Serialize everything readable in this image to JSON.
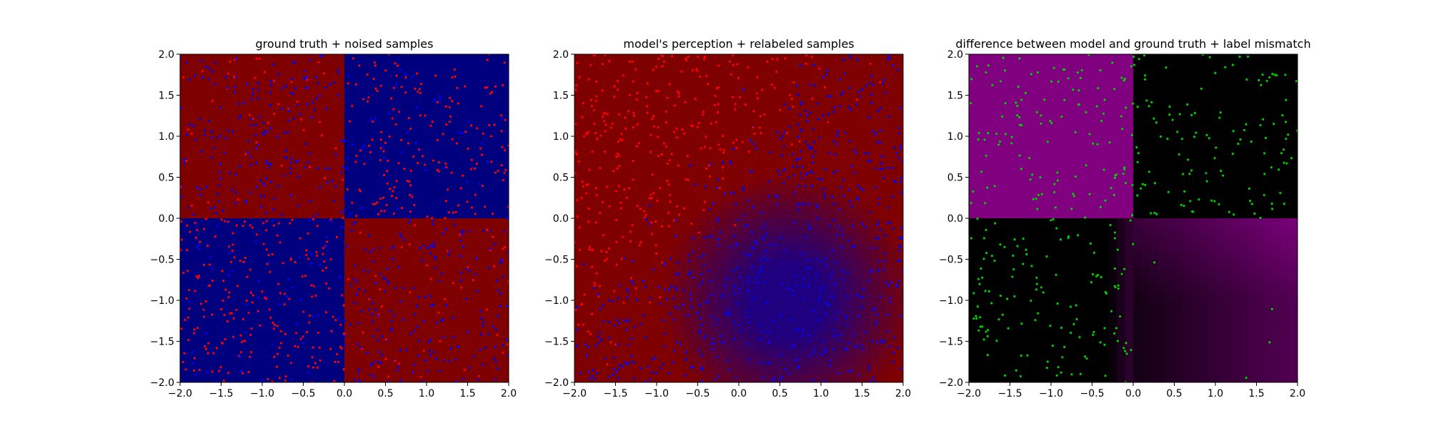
{
  "figure": {
    "background": "#ffffff"
  },
  "chart_data": [
    {
      "type": "heatmap",
      "title": "ground truth + noised samples",
      "xlim": [
        -2.0,
        2.0
      ],
      "ylim": [
        -2.0,
        2.0
      ],
      "xticks": [
        "−2.0",
        "−1.5",
        "−1.0",
        "−0.5",
        "0.0",
        "0.5",
        "1.0",
        "1.5",
        "2.0"
      ],
      "yticks": [
        "−2.0",
        "−1.5",
        "−1.0",
        "−0.5",
        "0.0",
        "0.5",
        "1.0",
        "1.5",
        "2.0"
      ],
      "grid": false,
      "background": "quadrants: x*y<0 dark red, x*y>0 dark blue (XOR ground truth)",
      "colors": {
        "positive_product": "#00007f",
        "negative_product": "#7f0000"
      },
      "scatter": {
        "description": "~1000 noisy samples uniformly spread over [-2,2]^2; red points where the label is 'red', blue points where 'blue'",
        "colors": [
          "#ff0000",
          "#0000ff"
        ],
        "count": 1000
      }
    },
    {
      "type": "heatmap",
      "title": "model's perception + relabeled samples",
      "xlim": [
        -2.0,
        2.0
      ],
      "ylim": [
        -2.0,
        2.0
      ],
      "xticks": [
        "−2.0",
        "−1.5",
        "−1.0",
        "−0.5",
        "0.0",
        "0.5",
        "1.0",
        "1.5",
        "2.0"
      ],
      "yticks": [
        "−2.0",
        "−1.5",
        "−1.0",
        "−0.5",
        "0.0",
        "0.5",
        "1.0",
        "1.5",
        "2.0"
      ],
      "grid": false,
      "background": "mostly dark red; blue region toward the lower-right",
      "colors": {
        "red": "#7f0000",
        "blue": "#1f007f"
      },
      "scatter": {
        "description": "relabeled samples: red cluster in the upper-left, blue cluster centered near (0.3,-0.3)",
        "colors": [
          "#ff0000",
          "#0000ff"
        ],
        "count": 1000
      }
    },
    {
      "type": "heatmap",
      "title": "difference between model and ground truth + label mismatch",
      "xlim": [
        -2.0,
        2.0
      ],
      "ylim": [
        -2.0,
        2.0
      ],
      "xticks": [
        "−2.0",
        "−1.5",
        "−1.0",
        "−0.5",
        "0.0",
        "0.5",
        "1.0",
        "1.5",
        "2.0"
      ],
      "yticks": [
        "−2.0",
        "−1.5",
        "−1.0",
        "−0.5",
        "0.0",
        "0.5",
        "1.0",
        "1.5",
        "2.0"
      ],
      "grid": false,
      "background": "purple in upper-left quadrant, black elsewhere with purple gradient toward lower-right",
      "colors": {
        "mismatch": "#800080",
        "match": "#000000"
      },
      "scatter": {
        "description": "green points marking label mismatches, concentrated in the upper-left, upper-right and lower-left regions",
        "colors": [
          "#00cc00"
        ],
        "count": 500
      }
    }
  ]
}
